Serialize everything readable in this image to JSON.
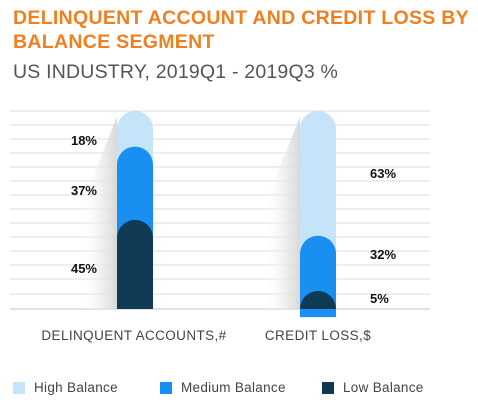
{
  "title": "DELINQUENT ACCOUNT AND CREDIT LOSS BY BALANCE SEGMENT",
  "subtitle": "US INDUSTRY, 2019Q1 - 2019Q3 %",
  "colors": {
    "high": "#c5e4f9",
    "medium": "#1a8ff2",
    "low": "#0f3a53",
    "title": "#f07f1f",
    "grid": "#d0d0d0"
  },
  "chart_data": {
    "type": "bar",
    "stacked": true,
    "normalized_percent": true,
    "title": "DELINQUENT ACCOUNT AND CREDIT LOSS BY BALANCE SEGMENT",
    "subtitle": "US INDUSTRY, 2019Q1 - 2019Q3 %",
    "categories": [
      "DELINQUENT ACCOUNTS,#",
      "CREDIT LOSS,$"
    ],
    "series": [
      {
        "name": "High Balance",
        "values": [
          18,
          63
        ],
        "labels": [
          "18%",
          "63%"
        ]
      },
      {
        "name": "Medium Balance",
        "values": [
          37,
          32
        ],
        "labels": [
          "37%",
          "32%"
        ]
      },
      {
        "name": "Low Balance",
        "values": [
          45,
          5
        ],
        "labels": [
          "45%",
          "5%"
        ]
      }
    ],
    "ylim": [
      0,
      100
    ],
    "grid": true,
    "legend_position": "bottom"
  }
}
